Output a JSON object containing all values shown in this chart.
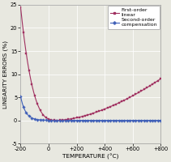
{
  "title": "",
  "xlabel": "TEMPERATURE (°C)",
  "ylabel": "LINEARITY ERRORS (%)",
  "xlim": [
    -200,
    800
  ],
  "ylim": [
    -5,
    25
  ],
  "xticks": [
    -200,
    0,
    200,
    400,
    600,
    800
  ],
  "xtick_labels": [
    "-200",
    "0",
    "+200",
    "+400",
    "+600",
    "+800"
  ],
  "yticks": [
    -5,
    0,
    5,
    10,
    15,
    20,
    25
  ],
  "curve1_color": "#a03060",
  "curve2_color": "#4060b8",
  "curve1_label_line1": "First-order",
  "curve1_label_line2": "linear",
  "curve2_label_line1": "Second-order",
  "curve2_label_line2": "compensation",
  "bg_color": "#e8e8e0"
}
